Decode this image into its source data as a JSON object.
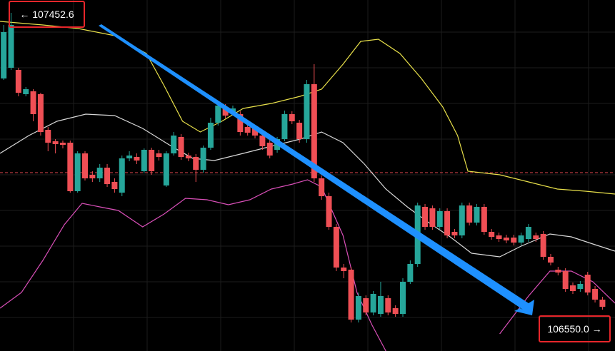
{
  "chart_data": {
    "type": "candlestick",
    "ohlc_order": [
      "open",
      "high",
      "low",
      "close"
    ],
    "candles": [
      [
        107270,
        107420,
        107266,
        107400
      ],
      [
        107300,
        107454,
        107294,
        107420
      ],
      [
        107294,
        107300,
        107220,
        107230
      ],
      [
        107226,
        107246,
        107220,
        107240
      ],
      [
        107234,
        107240,
        107150,
        107170
      ],
      [
        107226,
        107230,
        107110,
        107120
      ],
      [
        107126,
        107134,
        107066,
        107090
      ],
      [
        107094,
        107100,
        107060,
        107086
      ],
      [
        107090,
        107096,
        107074,
        107084
      ],
      [
        107090,
        107096,
        106950,
        106954
      ],
      [
        106954,
        107066,
        106950,
        107060
      ],
      [
        107060,
        107066,
        106984,
        106990
      ],
      [
        107000,
        107010,
        106980,
        106990
      ],
      [
        106990,
        107030,
        106980,
        107020
      ],
      [
        107020,
        107030,
        106966,
        106974
      ],
      [
        106980,
        106990,
        106950,
        106960
      ],
      [
        106950,
        107054,
        106940,
        107046
      ],
      [
        107046,
        107066,
        107038,
        107054
      ],
      [
        107050,
        107060,
        107030,
        107040
      ],
      [
        107010,
        107074,
        107004,
        107070
      ],
      [
        107070,
        107076,
        107000,
        107010
      ],
      [
        107060,
        107070,
        107040,
        107050
      ],
      [
        106970,
        107066,
        106966,
        107060
      ],
      [
        107060,
        107120,
        107054,
        107110
      ],
      [
        107106,
        107114,
        107042,
        107050
      ],
      [
        107054,
        107062,
        107038,
        107046
      ],
      [
        107050,
        107058,
        106980,
        107014
      ],
      [
        107014,
        107082,
        107006,
        107076
      ],
      [
        107076,
        107160,
        107070,
        107146
      ],
      [
        107146,
        107200,
        107138,
        107194
      ],
      [
        107190,
        107198,
        107158,
        107166
      ],
      [
        107174,
        107194,
        107166,
        107186
      ],
      [
        107170,
        107178,
        107110,
        107120
      ],
      [
        107134,
        107142,
        107110,
        107118
      ],
      [
        107130,
        107138,
        107102,
        107110
      ],
      [
        107110,
        107118,
        107070,
        107080
      ],
      [
        107090,
        107098,
        107046,
        107054
      ],
      [
        107070,
        107106,
        107062,
        107100
      ],
      [
        107100,
        107180,
        107094,
        107170
      ],
      [
        107170,
        107178,
        107142,
        107150
      ],
      [
        107146,
        107154,
        107090,
        107100
      ],
      [
        107100,
        107266,
        107090,
        107254
      ],
      [
        107254,
        107310,
        106980,
        106990
      ],
      [
        106990,
        106998,
        106930,
        106940
      ],
      [
        106940,
        106950,
        106846,
        106854
      ],
      [
        106854,
        106862,
        106730,
        106740
      ],
      [
        106740,
        106750,
        106710,
        106730
      ],
      [
        106734,
        106742,
        106586,
        106594
      ],
      [
        106594,
        106670,
        106586,
        106660
      ],
      [
        106654,
        106662,
        106606,
        106614
      ],
      [
        106614,
        106674,
        106606,
        106666
      ],
      [
        106610,
        106700,
        106602,
        106660
      ],
      [
        106654,
        106662,
        106606,
        106614
      ],
      [
        106626,
        106634,
        106602,
        106610
      ],
      [
        106610,
        106710,
        106602,
        106700
      ],
      [
        106700,
        106760,
        106694,
        106750
      ],
      [
        106750,
        106922,
        106742,
        106914
      ],
      [
        106910,
        106918,
        106846,
        106854
      ],
      [
        106906,
        106914,
        106846,
        106854
      ],
      [
        106854,
        106906,
        106846,
        106898
      ],
      [
        106898,
        106906,
        106822,
        106830
      ],
      [
        106840,
        106848,
        106822,
        106830
      ],
      [
        106830,
        106922,
        106822,
        106914
      ],
      [
        106914,
        106922,
        106858,
        106866
      ],
      [
        106866,
        106918,
        106858,
        106910
      ],
      [
        106910,
        106918,
        106832,
        106840
      ],
      [
        106840,
        106848,
        106818,
        106826
      ],
      [
        106830,
        106838,
        106812,
        106820
      ],
      [
        106824,
        106832,
        106808,
        106816
      ],
      [
        106824,
        106832,
        106802,
        106810
      ],
      [
        106810,
        106838,
        106802,
        106830
      ],
      [
        106820,
        106862,
        106812,
        106854
      ],
      [
        106830,
        106838,
        106812,
        106820
      ],
      [
        106834,
        106842,
        106762,
        106770
      ],
      [
        106770,
        106778,
        106746,
        106754
      ],
      [
        106734,
        106742,
        106718,
        106726
      ],
      [
        106730,
        106738,
        106672,
        106680
      ],
      [
        106690,
        106698,
        106666,
        106674
      ],
      [
        106680,
        106702,
        106672,
        106694
      ],
      [
        106720,
        106728,
        106662,
        106670
      ],
      [
        106680,
        106688,
        106642,
        106650
      ],
      [
        106650,
        106658,
        106622,
        106630
      ]
    ],
    "up_color": "#26a69a",
    "down_color": "#ef4f55",
    "series": [
      {
        "color": "#e8e04a",
        "x": [
          -0.5,
          5.3,
          10.1,
          15,
          19.3,
          21.7,
          24.2,
          26.6,
          29.5,
          32.4,
          36.2,
          40.1,
          43,
          45.9,
          48.3,
          50.7,
          53.6,
          56.5,
          59.4,
          61.4,
          62.8,
          67.1,
          71,
          74.9,
          78.7,
          82.7
        ],
        "values": [
          107430,
          107420,
          107410,
          107390,
          107340,
          107250,
          107150,
          107120,
          107150,
          107186,
          107200,
          107220,
          107240,
          107310,
          107374,
          107380,
          107340,
          107270,
          107190,
          107110,
          107010,
          107000,
          106980,
          106960,
          106954,
          106946
        ]
      },
      {
        "color": "#d8d8d8",
        "x": [
          -0.5,
          3.4,
          7.2,
          11.1,
          15,
          18.8,
          22.7,
          25.6,
          28.5,
          32.4,
          36.2,
          40.1,
          43,
          45.9,
          48.8,
          51.7,
          54.6,
          57.5,
          60.4,
          63.3,
          67.1,
          70,
          73.9,
          76.8,
          79.7,
          82.7
        ],
        "values": [
          107060,
          107110,
          107150,
          107170,
          107166,
          107130,
          107080,
          107046,
          107040,
          107060,
          107080,
          107100,
          107120,
          107090,
          107030,
          106960,
          106910,
          106866,
          106826,
          106780,
          106770,
          106800,
          106834,
          106826,
          106806,
          106786
        ]
      },
      {
        "color": "#d94fb8",
        "x": [
          -0.5,
          2.4,
          5.3,
          8.2,
          10.6,
          13,
          15.5,
          18.8,
          21.7,
          24.6,
          27.5,
          30.4,
          33.3,
          36.2,
          39.1,
          41.1,
          43,
          45.9,
          47.8,
          49.8,
          51.7,
          57.5,
          67.1,
          71,
          73.9,
          76.8,
          79.7,
          82.7
        ],
        "values": [
          106626,
          106670,
          106760,
          106860,
          106920,
          106910,
          106900,
          106854,
          106890,
          106934,
          106930,
          106916,
          106930,
          106960,
          106974,
          106986,
          106966,
          106830,
          106670,
          106580,
          106506,
          null,
          106554,
          106660,
          106730,
          106730,
          106700,
          106640
        ]
      }
    ],
    "reference_line": 107006,
    "reference_color": "#e0464e",
    "xlim": [
      -0.5,
      82.7
    ],
    "ylim": [
      106506,
      107490
    ],
    "annotations": {
      "high_label": "← 107452.6",
      "low_label": "106550.0 →"
    }
  }
}
